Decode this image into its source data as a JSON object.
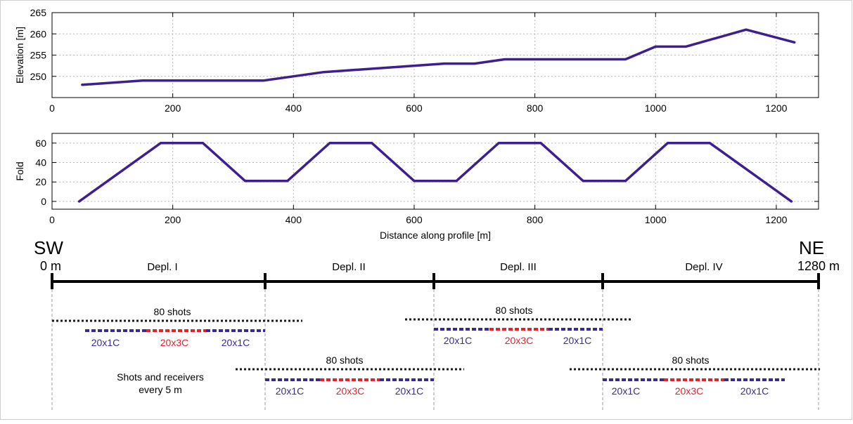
{
  "chart_data": [
    {
      "type": "line",
      "ylabel": "Elevation [m]",
      "xlim": [
        0,
        1270
      ],
      "ylim": [
        245,
        265
      ],
      "x_ticks": [
        0,
        200,
        400,
        600,
        800,
        1000,
        1200
      ],
      "y_ticks": [
        250,
        255,
        260,
        265
      ],
      "grid": true,
      "series": [
        {
          "color": "#3d1f8f",
          "x": [
            50,
            150,
            350,
            450,
            650,
            700,
            750,
            950,
            1000,
            1050,
            1150,
            1230
          ],
          "y": [
            248,
            249,
            249,
            251,
            253,
            253,
            254,
            254,
            257,
            257,
            261,
            258
          ]
        }
      ]
    },
    {
      "type": "line",
      "ylabel": "Fold",
      "xlabel": "Distance along profile [m]",
      "xlim": [
        0,
        1270
      ],
      "ylim": [
        -8,
        70
      ],
      "x_ticks": [
        0,
        200,
        400,
        600,
        800,
        1000,
        1200
      ],
      "y_ticks": [
        0,
        20,
        40,
        60
      ],
      "grid": true,
      "series": [
        {
          "color": "#3d1f8f",
          "x": [
            45,
            180,
            250,
            320,
            390,
            460,
            530,
            600,
            670,
            740,
            810,
            880,
            950,
            1020,
            1090,
            1225
          ],
          "y": [
            0,
            60,
            60,
            21,
            21,
            60,
            60,
            21,
            21,
            60,
            60,
            21,
            21,
            60,
            60,
            0
          ]
        }
      ]
    }
  ],
  "deployment_diagram": {
    "left_end": "SW",
    "left_distance": "0 m",
    "right_end": "NE",
    "right_distance": "1280 m",
    "deployments": [
      "Depl. I",
      "Depl. II",
      "Depl. III",
      "Depl. IV"
    ],
    "shots_label": "80 shots",
    "single_component_label": "20x1C",
    "three_component_label": "20x3C",
    "note_line1": "Shots and receivers",
    "note_line2": "every 5 m",
    "colors": {
      "shots": "#1a1a1a",
      "single_component": "#3a2a8c",
      "three_component": "#e0242a",
      "line": "#3d1f8f"
    }
  }
}
